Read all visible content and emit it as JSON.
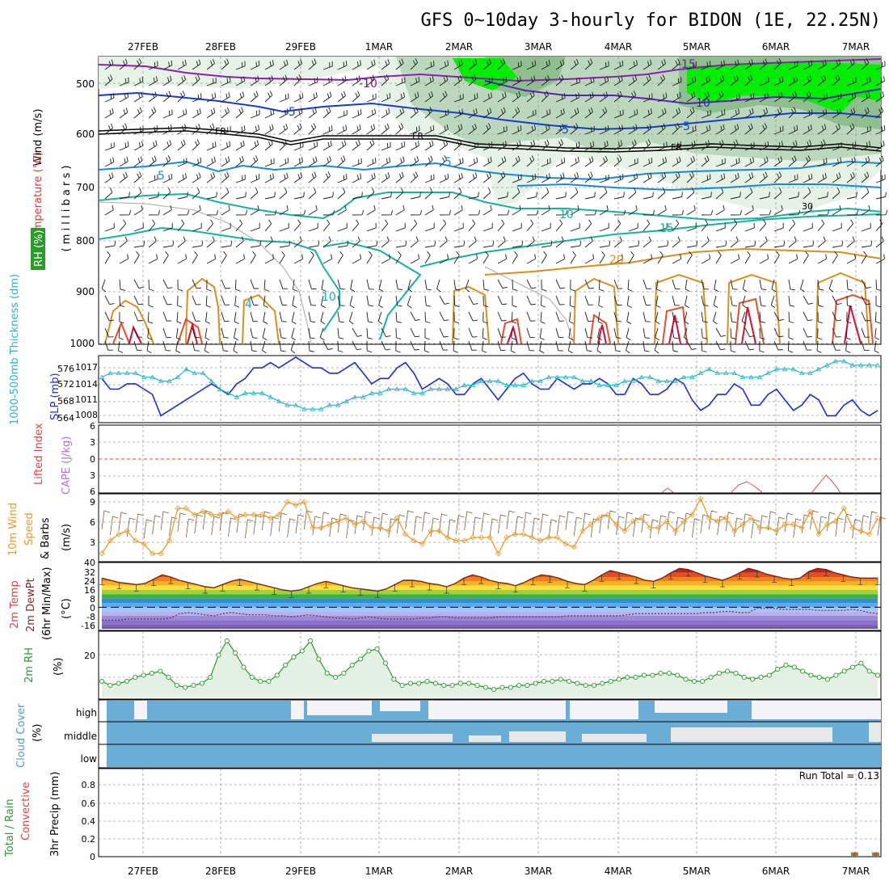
{
  "title": "GFS 0~10day 3-hourly for BIDON (1E, 22.25N)",
  "date_labels": [
    "27FEB",
    "28FEB",
    "29FEB",
    "1MAR",
    "2MAR",
    "3MAR",
    "4MAR",
    "5MAR",
    "6MAR",
    "7MAR"
  ],
  "colors": {
    "grid": "#9a9a9a",
    "rh_green_light": "#e6f2e6",
    "rh_green_mid": "#bcd8bc",
    "rh_green_dark": "#8fbf8f",
    "rh_bright": "#00ee00",
    "slp": "#1c2fcf",
    "thickness": "#2bb5c8",
    "wind10m": "#e89a2a",
    "rh2m": "#2a9a2a",
    "cloud": "#6aaed6",
    "temp_dewpt_line": "#7a2a2a",
    "fr_line": "#000000"
  },
  "upper_panel": {
    "ylabels": {
      "wind": "Wind (m/s)",
      "temp": "Temperature (°C)",
      "rh": "RH (%)",
      "mb": "( m i l l i b a r s )"
    },
    "levels": [
      "500",
      "600",
      "700",
      "800",
      "900",
      "1000"
    ],
    "contour_labels": [
      "-15",
      "-10",
      "-10",
      "-5",
      "-5",
      "-5",
      "FR",
      "FR",
      "FR",
      "5",
      "5",
      "10",
      "10",
      "15",
      "20",
      "4",
      "10",
      "30",
      "4"
    ]
  },
  "slp_panel": {
    "ylabel_thick": "1000-500mb Thickness (dm)",
    "ylabel_slp": "SLP (mb)",
    "left_ticks": [
      "576",
      "572",
      "568",
      "564"
    ],
    "right_ticks": [
      "1017",
      "1014",
      "1011",
      "1008"
    ]
  },
  "cape_panel": {
    "ylabel_li": "Lifted Index",
    "ylabel_cape": "CAPE (J/kg)",
    "left_ticks": [
      "6",
      "3",
      "0",
      "3",
      "6"
    ]
  },
  "wind10_panel": {
    "ylabel_a": "10m Wind",
    "ylabel_b": "Speed",
    "ylabel_c": "& Barbs",
    "ylabel_unit": "(m/s)",
    "ticks": [
      "9",
      "6",
      "3"
    ]
  },
  "temp_panel": {
    "ylabel_a": "2m Temp",
    "ylabel_b": "2m DewPt",
    "ylabel_c": "(6hr Min/Max)",
    "ylabel_unit": "(°C)",
    "ticks": [
      "40",
      "32",
      "24",
      "16",
      "8",
      "0",
      "-8",
      "-16"
    ]
  },
  "rh2m_panel": {
    "ylabel": "2m RH",
    "ylabel_unit": "(%)",
    "ticks": [
      "20"
    ]
  },
  "cloud_panel": {
    "ylabel": "Cloud Cover",
    "ylabel_unit": "(%)",
    "rows": [
      "high",
      "middle",
      "low"
    ]
  },
  "precip_panel": {
    "ylabel_a": "Total / Rain",
    "ylabel_b": "Convective",
    "ylabel_c": "3hr Precip (mm)",
    "ticks": [
      "0.8",
      "0.6",
      "0.4",
      "0.2",
      "0"
    ],
    "run_total": "Run Total = 0.13"
  },
  "chart_data": [
    {
      "type": "line",
      "title": "SLP (mb)",
      "series": [
        {
          "name": "SLP (mb)",
          "values": [
            1014,
            1012,
            1012,
            1013,
            1013,
            1012,
            1011,
            1007,
            1008,
            1009,
            1010,
            1011,
            1012,
            1013,
            1012,
            1011,
            1013,
            1014,
            1016,
            1016,
            1017,
            1016,
            1017,
            1018,
            1017,
            1016,
            1016,
            1015,
            1015,
            1016,
            1017,
            1015,
            1013,
            1014,
            1014,
            1016,
            1017,
            1015,
            1012,
            1013,
            1014,
            1013,
            1011,
            1011,
            1013,
            1014,
            1012,
            1010,
            1012,
            1014,
            1015,
            1013,
            1012,
            1012,
            1014,
            1013,
            1012,
            1013,
            1013,
            1014,
            1013,
            1011,
            1011,
            1014,
            1013,
            1011,
            1011,
            1012,
            1014,
            1013,
            1010,
            1008,
            1009,
            1011,
            1011,
            1013,
            1012,
            1009,
            1009,
            1011,
            1012,
            1010,
            1008,
            1009,
            1011,
            1010,
            1007,
            1007,
            1009,
            1010,
            1008,
            1007,
            1008
          ]
        }
      ],
      "ylim": [
        1006,
        1018
      ]
    },
    {
      "type": "line",
      "title": "1000-500mb Thickness (dm)",
      "series": [
        {
          "name": "1000-500mb Thickness (dm)",
          "values": [
            573,
            574,
            574,
            574,
            574,
            573,
            573,
            572,
            572,
            573,
            575,
            574,
            574,
            572,
            570,
            569,
            568,
            569,
            569,
            569,
            568,
            567,
            566,
            566,
            565,
            565,
            565,
            566,
            566,
            567,
            568,
            568,
            569,
            569,
            570,
            570,
            570,
            569,
            569,
            570,
            570,
            570,
            570,
            571,
            571,
            572,
            572,
            572,
            571,
            571,
            571,
            572,
            572,
            573,
            573,
            573,
            573,
            572,
            572,
            571,
            571,
            571,
            572,
            572,
            573,
            573,
            572,
            572,
            572,
            573,
            573,
            574,
            575,
            574,
            574,
            574,
            573,
            573,
            573,
            574,
            575,
            575,
            575,
            574,
            574,
            575,
            576,
            577,
            577,
            576,
            576,
            576,
            576
          ]
        }
      ],
      "ylim": [
        562,
        578
      ]
    },
    {
      "type": "line",
      "title": "10m Wind Speed (m/s)",
      "series": [
        {
          "name": "10m Wind Speed (m/s)",
          "values": [
            1.0,
            3.0,
            4.0,
            4.5,
            3.0,
            2.5,
            1.0,
            1.0,
            3.0,
            8.0,
            8.0,
            7.0,
            7.5,
            7.0,
            7.0,
            7.5,
            6.5,
            7.0,
            7.0,
            7.0,
            6.5,
            7.0,
            9.0,
            8.5,
            9.0,
            5.0,
            5.0,
            5.5,
            6.0,
            6.5,
            5.5,
            6.0,
            5.0,
            5.0,
            4.5,
            6.5,
            4.0,
            3.0,
            2.5,
            4.5,
            4.5,
            3.5,
            3.0,
            3.0,
            3.5,
            3.5,
            3.5,
            1.0,
            3.5,
            4.0,
            4.0,
            3.5,
            3.0,
            3.5,
            3.5,
            2.5,
            2.0,
            4.5,
            5.5,
            6.5,
            7.0,
            5.5,
            4.5,
            6.0,
            6.5,
            5.0,
            5.0,
            6.0,
            4.5,
            6.0,
            7.0,
            9.5,
            6.5,
            6.0,
            6.5,
            4.5,
            5.5,
            6.5,
            5.0,
            5.0,
            4.5,
            5.5,
            5.5,
            5.0,
            7.5,
            4.0,
            5.5,
            6.0,
            8.0,
            5.0,
            4.5,
            4.0,
            6.5
          ]
        }
      ],
      "ylim": [
        0,
        10
      ]
    },
    {
      "type": "area",
      "title": "2m Temp (°C)",
      "series": [
        {
          "name": "2m Temp (°C)",
          "values": [
            27,
            25,
            23,
            22,
            21,
            22,
            26,
            30,
            28,
            25,
            23,
            21,
            19,
            18,
            21,
            24,
            26,
            24,
            22,
            20,
            18,
            16,
            15,
            16,
            19,
            22,
            24,
            22,
            20,
            18,
            17,
            16,
            15,
            17,
            21,
            25,
            25,
            24,
            22,
            21,
            19,
            22,
            27,
            30,
            28,
            25,
            23,
            22,
            20,
            23,
            27,
            30,
            29,
            27,
            24,
            22,
            21,
            25,
            30,
            34,
            32,
            30,
            28,
            25,
            24,
            27,
            32,
            36,
            35,
            32,
            29,
            27,
            25,
            28,
            32,
            36,
            34,
            31,
            29,
            27,
            26,
            27,
            33,
            36,
            35,
            32,
            30,
            28,
            27,
            27,
            27
          ]
        }
      ],
      "ylim": [
        -20,
        40
      ]
    },
    {
      "type": "line",
      "title": "2m DewPt (°C)",
      "series": [
        {
          "name": "2m DewPt (°C)",
          "values": [
            -12,
            -12,
            -12,
            -11,
            -11,
            -11,
            -11,
            -11,
            -10,
            -6,
            -5,
            -6,
            -7,
            -8,
            -6,
            -5,
            -6,
            -7,
            -7,
            -7,
            -8,
            -8,
            -9,
            -8,
            -7,
            -8,
            -9,
            -10,
            -10,
            -11,
            -10,
            -9,
            -10,
            -11,
            -11,
            -11,
            -11,
            -10,
            -10,
            -9,
            -9,
            -10,
            -10,
            -10,
            -10,
            -10,
            -9,
            -9,
            -9,
            -9,
            -9,
            -9,
            -9,
            -9,
            -8,
            -8,
            -8,
            -8,
            -8,
            -8,
            -8,
            -7,
            -6,
            -6,
            -6,
            -6,
            -6,
            -6,
            -6,
            -6,
            -5,
            -5,
            -4,
            -4,
            -5,
            -5,
            -1,
            -1,
            -1,
            -2,
            -2,
            -2,
            -2,
            -3,
            -3,
            -3,
            -3,
            -2,
            -3,
            -5,
            -6
          ]
        }
      ],
      "ylim": [
        -20,
        40
      ]
    },
    {
      "type": "area",
      "title": "2m RH (%)",
      "series": [
        {
          "name": "2m RH (%)",
          "values": [
            8,
            6,
            7,
            8,
            10,
            11,
            12,
            13,
            10,
            6,
            5,
            6,
            7,
            10,
            21,
            28,
            22,
            15,
            10,
            8,
            8,
            11,
            16,
            20,
            23,
            28,
            19,
            12,
            10,
            12,
            16,
            19,
            23,
            24,
            17,
            9,
            6,
            7,
            7,
            8,
            7,
            6,
            6,
            7,
            7,
            6,
            5,
            4,
            5,
            5,
            6,
            6,
            7,
            8,
            8,
            9,
            8,
            7,
            6,
            6,
            7,
            8,
            9,
            10,
            10,
            11,
            11,
            12,
            12,
            11,
            9,
            8,
            8,
            10,
            12,
            13,
            12,
            10,
            9,
            10,
            11,
            14,
            16,
            15,
            13,
            11,
            10,
            9,
            11,
            13,
            15,
            17,
            13,
            11
          ]
        }
      ],
      "ylim": [
        0,
        32
      ]
    },
    {
      "type": "bar",
      "title": "3hr Precip (mm)",
      "series": [
        {
          "name": "Total / Rain",
          "values": [
            0.01,
            0.01
          ]
        },
        {
          "name": "Convective",
          "values": [
            0.01,
            0.01
          ]
        }
      ],
      "ylim": [
        0,
        1.0
      ]
    }
  ]
}
